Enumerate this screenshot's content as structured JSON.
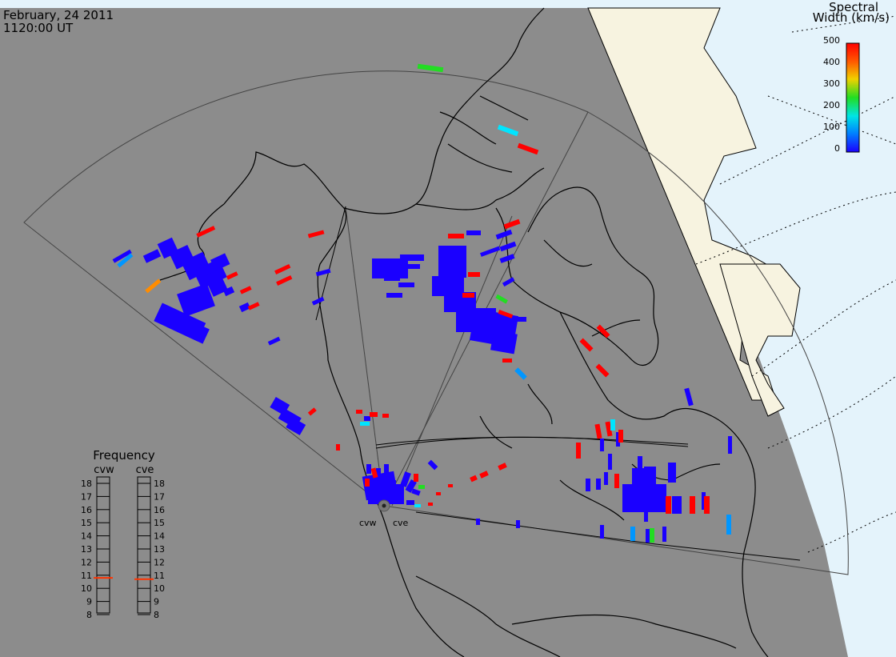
{
  "header": {
    "date": "February, 24 2011",
    "time": "1120:00 UT"
  },
  "colorbar": {
    "title_line1": "Spectral",
    "title_line2": "Width (km/s)",
    "ticks": [
      "500",
      "400",
      "300",
      "200",
      "100",
      "0"
    ],
    "colors": [
      "#ff0000",
      "#ff8c00",
      "#e6e600",
      "#22dd22",
      "#00e5e5",
      "#0064ff",
      "#1a00ff"
    ]
  },
  "radars": {
    "west": "cvw",
    "east": "cve"
  },
  "frequency_panel": {
    "title": "Frequency",
    "col_left": "cvw",
    "col_right": "cve",
    "levels": [
      "18",
      "17",
      "16",
      "15",
      "14",
      "13",
      "12",
      "11",
      "10",
      "9",
      "8"
    ],
    "cvw_value": 10.8,
    "cve_value": 10.7
  },
  "colors": {
    "night": "#8c8c8c",
    "day_land": "#f7f3e0",
    "day_sea": "#e4f3fb",
    "echo_blue": "#1a00ff",
    "echo_red": "#ff0000",
    "echo_cyan": "#00d8ff",
    "echo_green": "#22dd22",
    "echo_orange": "#ff8c00"
  }
}
